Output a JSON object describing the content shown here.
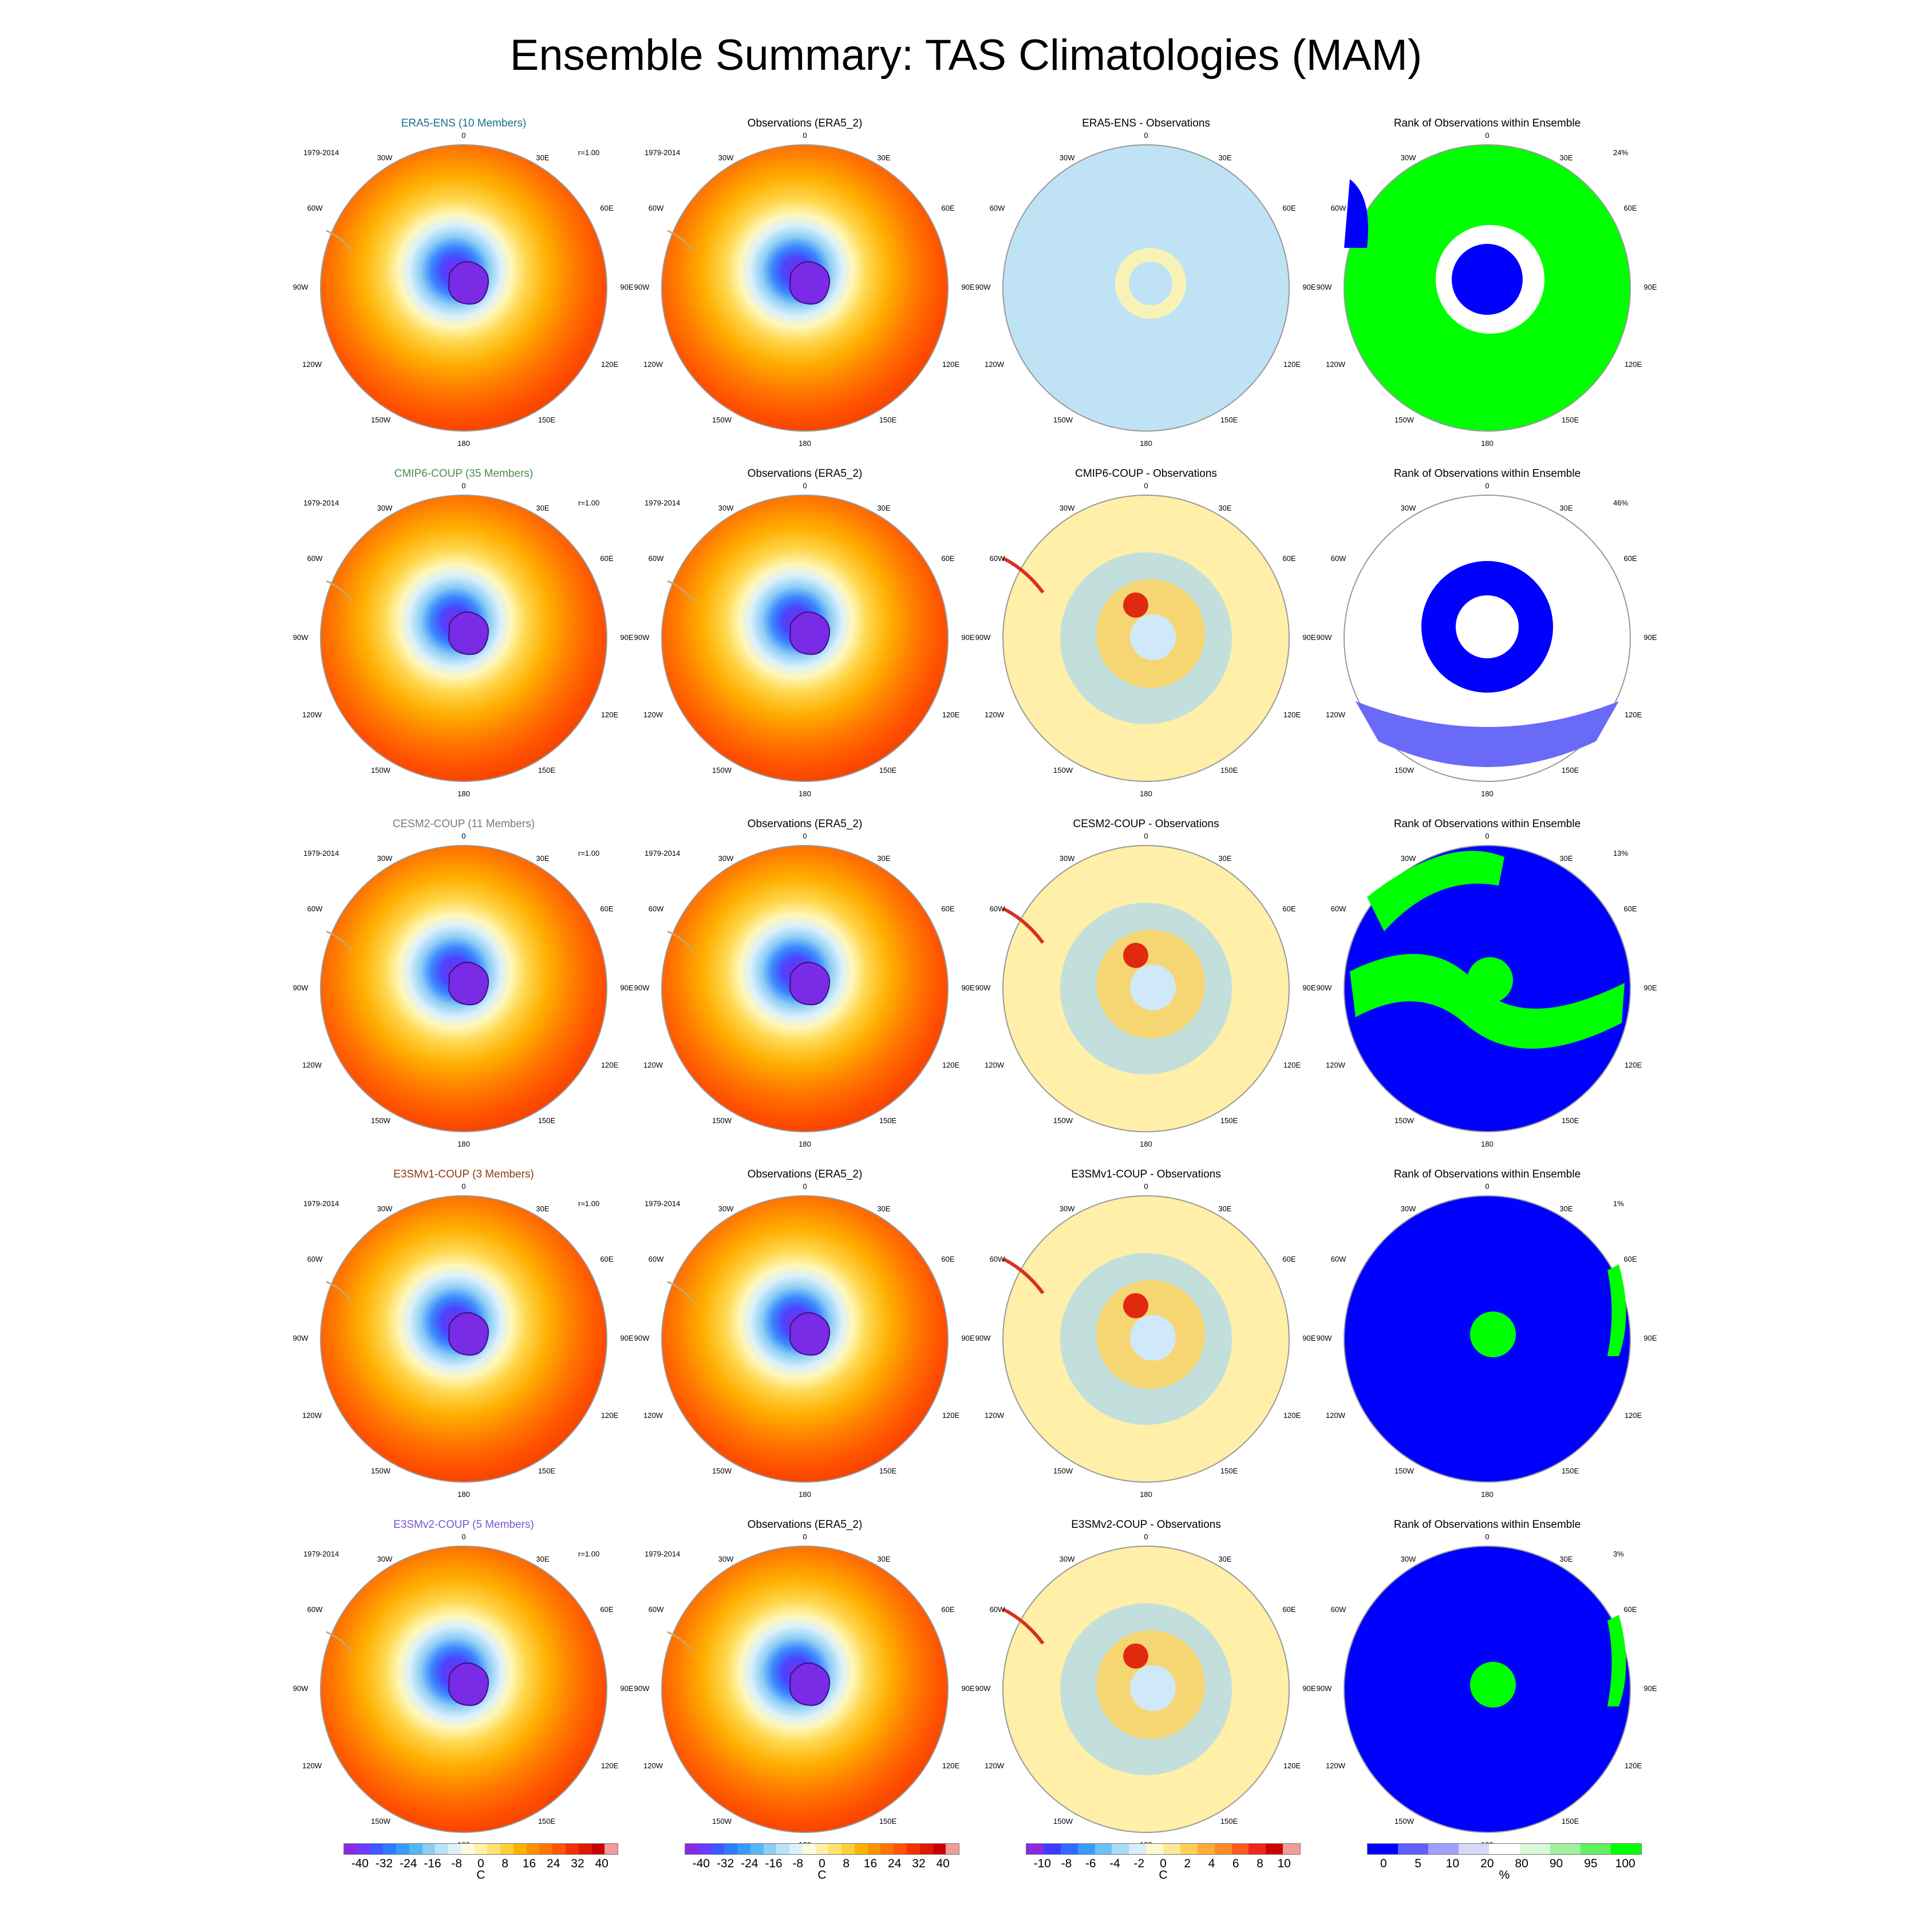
{
  "title": "Ensemble Summary: TAS Climatologies (MAM)",
  "column_titles": {
    "observations": "Observations (ERA5_2)",
    "rank": "Rank of Observations within Ensemble"
  },
  "period": "1979-2014",
  "lon_labels": {
    "top": "0",
    "bottom": "180",
    "n30w": "30W",
    "n30e": "30E",
    "n60w": "60W",
    "n60e": "60E",
    "w90": "90W",
    "e90": "90E",
    "s120w": "120W",
    "s120e": "120E",
    "s150w": "150W",
    "s150e": "150E"
  },
  "rows": [
    {
      "model_title": "ERA5-ENS (10 Members)",
      "title_color": "#1a6e8e",
      "corr": "r=1.00",
      "diff_title": "ERA5-ENS - Observations",
      "rank_pct": "24%"
    },
    {
      "model_title": "CMIP6-COUP (35 Members)",
      "title_color": "#4f8a55",
      "corr": "r=1.00",
      "diff_title": "CMIP6-COUP - Observations",
      "rank_pct": "46%"
    },
    {
      "model_title": "CESM2-COUP (11 Members)",
      "title_color": "#7a7a7a",
      "corr": "r=1.00",
      "diff_title": "CESM2-COUP - Observations",
      "rank_pct": "13%"
    },
    {
      "model_title": "E3SMv1-COUP (3 Members)",
      "title_color": "#8b3a10",
      "corr": "r=1.00",
      "diff_title": "E3SMv1-COUP - Observations",
      "rank_pct": "1%"
    },
    {
      "model_title": "E3SMv2-COUP (5 Members)",
      "title_color": "#7a55d0",
      "corr": "r=1.00",
      "diff_title": "E3SMv2-COUP - Observations",
      "rank_pct": "3%"
    }
  ],
  "colorbars": [
    {
      "name": "climatology",
      "unit": "C",
      "ticks": [
        "-40",
        "-32",
        "-24",
        "-16",
        "-8",
        "0",
        "8",
        "16",
        "24",
        "32",
        "40"
      ],
      "colors": [
        "#8a2be2",
        "#6a3cff",
        "#3c5aff",
        "#2f7bff",
        "#3a9bff",
        "#56b6f5",
        "#8ccef5",
        "#b8e2f8",
        "#ddf1fb",
        "#fffde0",
        "#fff2a6",
        "#ffe36e",
        "#ffcf3a",
        "#ffb200",
        "#ff9200",
        "#ff7300",
        "#ff5400",
        "#f53000",
        "#e01800",
        "#c80000",
        "#f39a9a"
      ]
    },
    {
      "name": "observations",
      "unit": "C",
      "ticks": [
        "-40",
        "-32",
        "-24",
        "-16",
        "-8",
        "0",
        "8",
        "16",
        "24",
        "32",
        "40"
      ],
      "colors": [
        "#8a2be2",
        "#6a3cff",
        "#3c5aff",
        "#2f7bff",
        "#3a9bff",
        "#56b6f5",
        "#8ccef5",
        "#b8e2f8",
        "#ddf1fb",
        "#fffde0",
        "#fff2a6",
        "#ffe36e",
        "#ffcf3a",
        "#ffb200",
        "#ff9200",
        "#ff7300",
        "#ff5400",
        "#f53000",
        "#e01800",
        "#c80000",
        "#f39a9a"
      ]
    },
    {
      "name": "difference",
      "unit": "C",
      "ticks": [
        "-10",
        "-8",
        "-6",
        "-4",
        "-2",
        "0",
        "2",
        "4",
        "6",
        "8",
        "10"
      ],
      "colors": [
        "#8a2be2",
        "#3c3cff",
        "#2f6bff",
        "#3a9bff",
        "#6cc0f5",
        "#a8dcf5",
        "#d7eefa",
        "#fffbd0",
        "#ffe79a",
        "#ffcf55",
        "#ffae33",
        "#ff8a2a",
        "#ff5a20",
        "#f02818",
        "#d00000",
        "#f39a9a"
      ]
    },
    {
      "name": "rank",
      "unit": "%",
      "ticks": [
        "0",
        "5",
        "10",
        "20",
        "80",
        "90",
        "95",
        "100"
      ],
      "colors": [
        "#0000ff",
        "#6060ff",
        "#a0a0ff",
        "#d8d8f8",
        "#ffffff",
        "#d8f8d8",
        "#a0f0a0",
        "#60f060",
        "#00ff00"
      ]
    }
  ]
}
